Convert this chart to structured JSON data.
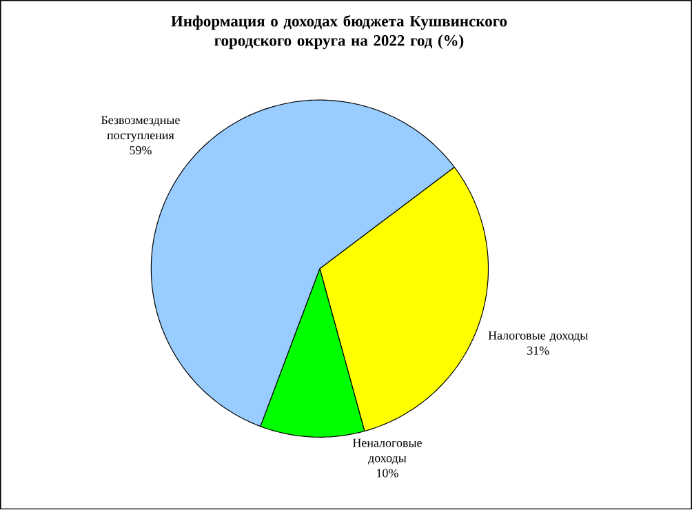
{
  "chart_data": {
    "type": "pie",
    "title": "Информация о доходах бюджета Кушвинского городского округа на 2022 год (%)",
    "categories": [
      "Налоговые доходы",
      "Неналоговые доходы",
      "Безвозмездные поступления"
    ],
    "values": [
      31,
      10,
      59
    ],
    "value_labels": [
      "31%",
      "10%",
      "59%"
    ],
    "colors": [
      "#ffff00",
      "#00ff00",
      "#99ccff"
    ]
  }
}
